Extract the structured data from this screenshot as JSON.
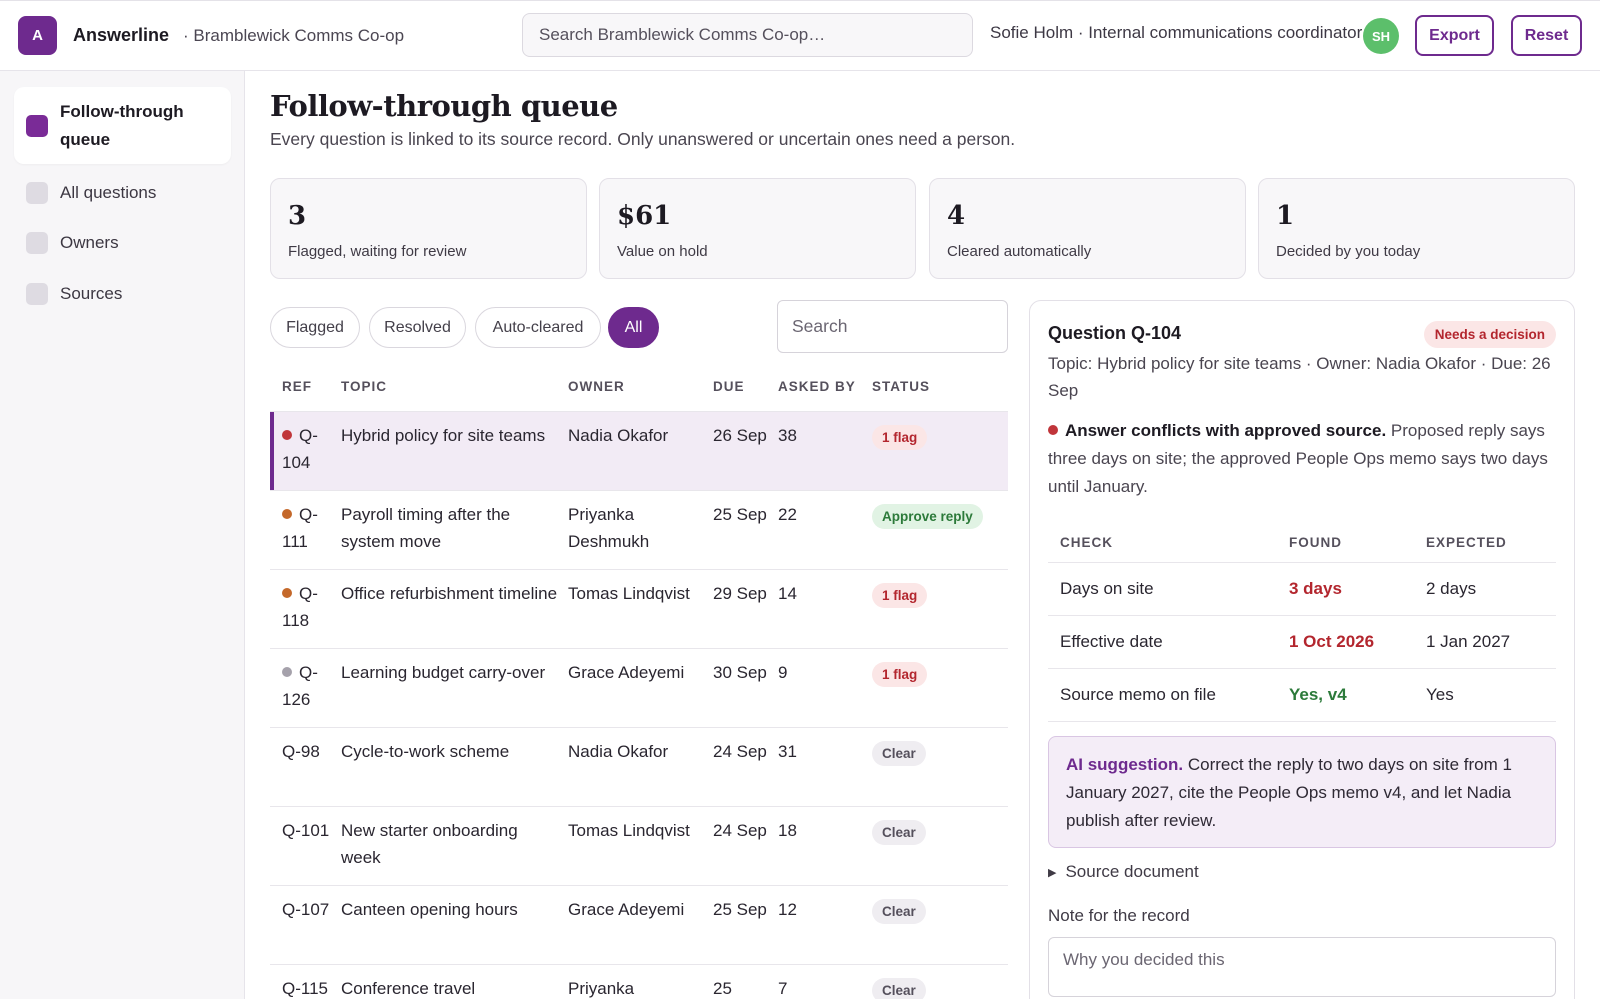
{
  "header": {
    "logo_letter": "A",
    "app_name": "Answerline",
    "org_name": "· Bramblewick Comms Co-op",
    "search_placeholder": "Search Bramblewick Comms Co-op…",
    "user": "Sofie Holm · Internal communications coordinator",
    "avatar_initials": "SH",
    "export_label": "Export",
    "reset_label": "Reset"
  },
  "sidebar": {
    "items": [
      {
        "label": "Follow-through queue",
        "active": true
      },
      {
        "label": "All questions",
        "active": false
      },
      {
        "label": "Owners",
        "active": false
      },
      {
        "label": "Sources",
        "active": false
      }
    ]
  },
  "page": {
    "title": "Follow-through queue",
    "subtitle": "Every question is linked to its source record. Only unanswered or uncertain ones need a person."
  },
  "stats": [
    {
      "value": "3",
      "label": "Flagged, waiting for review"
    },
    {
      "value": "$61",
      "label": "Value on hold"
    },
    {
      "value": "4",
      "label": "Cleared automatically"
    },
    {
      "value": "1",
      "label": "Decided by you today"
    }
  ],
  "filters": {
    "chips": [
      "Flagged",
      "Resolved",
      "Auto-cleared",
      "All"
    ],
    "active": "All",
    "search_placeholder": "Search"
  },
  "table": {
    "headers": [
      "REF",
      "TOPIC",
      "OWNER",
      "DUE",
      "ASKED BY",
      "STATUS"
    ],
    "rows": [
      {
        "ref": "Q-104",
        "dot": "#c0353a",
        "topic": "Hybrid policy for site teams",
        "owner": "Nadia Okafor",
        "due": "26 Sep",
        "asked": "38",
        "status": "1 flag",
        "kind": "flag",
        "selected": true
      },
      {
        "ref": "Q-111",
        "dot": "#c4682a",
        "topic": "Payroll timing after the system move",
        "owner": "Priyanka Deshmukh",
        "due": "25 Sep",
        "asked": "22",
        "status": "Approve reply",
        "kind": "approve",
        "selected": false
      },
      {
        "ref": "Q-118",
        "dot": "#c4682a",
        "topic": "Office refurbishment timeline",
        "owner": "Tomas Lindqvist",
        "due": "29 Sep",
        "asked": "14",
        "status": "1 flag",
        "kind": "flag",
        "selected": false
      },
      {
        "ref": "Q-126",
        "dot": "#a5a1ab",
        "topic": "Learning budget carry-over",
        "owner": "Grace Adeyemi",
        "due": "30 Sep",
        "asked": "9",
        "status": "1 flag",
        "kind": "flag",
        "selected": false
      },
      {
        "ref": "Q-98",
        "dot": "",
        "topic": "Cycle-to-work scheme",
        "owner": "Nadia Okafor",
        "due": "24 Sep",
        "asked": "31",
        "status": "Clear",
        "kind": "clear",
        "selected": false
      },
      {
        "ref": "Q-101",
        "dot": "",
        "topic": "New starter onboarding week",
        "owner": "Tomas Lindqvist",
        "due": "24 Sep",
        "asked": "18",
        "status": "Clear",
        "kind": "clear",
        "selected": false
      },
      {
        "ref": "Q-107",
        "dot": "",
        "topic": "Canteen opening hours",
        "owner": "Grace Adeyemi",
        "due": "25 Sep",
        "asked": "12",
        "status": "Clear",
        "kind": "clear",
        "selected": false
      },
      {
        "ref": "Q-115",
        "dot": "",
        "topic": "Conference travel",
        "owner": "Priyanka",
        "due": "25",
        "asked": "7",
        "status": "Clear",
        "kind": "clear",
        "selected": false
      }
    ]
  },
  "detail": {
    "title": "Question Q-104",
    "badge": "Needs a decision",
    "meta": "Topic: Hybrid policy for site teams · Owner: Nadia Okafor · Due: 26 Sep",
    "conflict_bold": "Answer conflicts with approved source.",
    "conflict_text": " Proposed reply says three days on site; the approved People Ops memo says two days until January.",
    "check_headers": [
      "CHECK",
      "FOUND",
      "EXPECTED"
    ],
    "checks": [
      {
        "check": "Days on site",
        "found": "3 days",
        "expected": "2 days",
        "ok": false
      },
      {
        "check": "Effective date",
        "found": "1 Oct 2026",
        "expected": "1 Jan 2027",
        "ok": false
      },
      {
        "check": "Source memo on file",
        "found": "Yes, v4",
        "expected": "Yes",
        "ok": true
      }
    ],
    "ai_label": "AI suggestion.",
    "ai_text": " Correct the reply to two days on site from 1 January 2027, cite the People Ops memo v4, and let Nadia publish after review.",
    "source_label": "Source document",
    "note_label": "Note for the record",
    "note_placeholder": "Why you decided this"
  },
  "colors": {
    "accent": "#6e2a8e",
    "flag": "#b3262e",
    "approve": "#2c7a3a"
  }
}
